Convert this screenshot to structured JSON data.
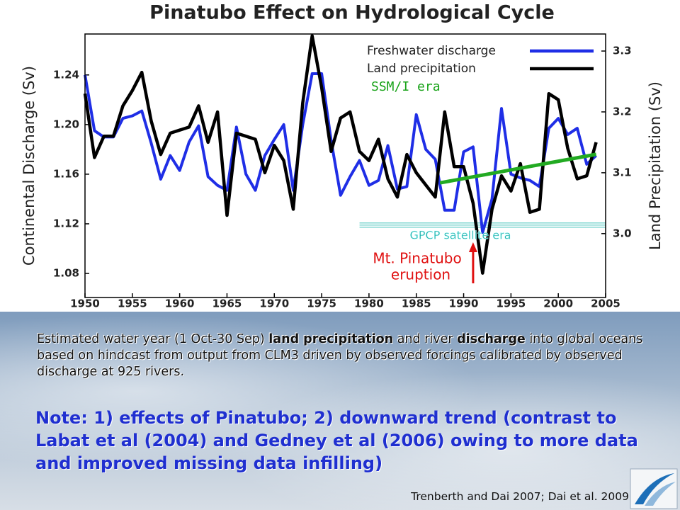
{
  "chart_data": {
    "type": "line",
    "title": "Pinatubo Effect on Hydrological Cycle",
    "ylabel": "Continental Discharge (Sv)",
    "y2label": "Land Precipitation (Sv)",
    "x": [
      1950,
      1951,
      1952,
      1953,
      1954,
      1955,
      1956,
      1957,
      1958,
      1959,
      1960,
      1961,
      1962,
      1963,
      1964,
      1965,
      1966,
      1967,
      1968,
      1969,
      1970,
      1971,
      1972,
      1973,
      1974,
      1975,
      1976,
      1977,
      1978,
      1979,
      1980,
      1981,
      1982,
      1983,
      1984,
      1985,
      1986,
      1987,
      1988,
      1989,
      1990,
      1991,
      1992,
      1993,
      1994,
      1995,
      1996,
      1997,
      1998,
      1999,
      2000,
      2001,
      2002,
      2003,
      2004
    ],
    "series": [
      {
        "name": "Freshwater discharge",
        "color": "#1f2ee6",
        "values": [
          1.24,
          1.195,
          1.19,
          1.19,
          1.205,
          1.207,
          1.211,
          1.185,
          1.156,
          1.175,
          1.163,
          1.186,
          1.199,
          1.158,
          1.151,
          1.147,
          1.198,
          1.16,
          1.147,
          1.175,
          1.188,
          1.2,
          1.147,
          1.2,
          1.241,
          1.241,
          1.187,
          1.143,
          1.158,
          1.171,
          1.151,
          1.155,
          1.183,
          1.148,
          1.15,
          1.208,
          1.18,
          1.172,
          1.131,
          1.131,
          1.178,
          1.182,
          1.113,
          1.14,
          1.213,
          1.16,
          1.157,
          1.155,
          1.15,
          1.197,
          1.205,
          1.192,
          1.197,
          1.168,
          1.175
        ]
      },
      {
        "name": "Land precipitation",
        "color": "#000000",
        "axis": "y2",
        "values": [
          3.23,
          3.125,
          3.16,
          3.16,
          3.21,
          3.235,
          3.265,
          3.185,
          3.13,
          3.165,
          3.17,
          3.175,
          3.21,
          3.15,
          3.2,
          3.03,
          3.165,
          3.16,
          3.155,
          3.1,
          3.145,
          3.12,
          3.04,
          3.215,
          3.325,
          3.24,
          3.135,
          3.19,
          3.2,
          3.135,
          3.12,
          3.155,
          3.09,
          3.06,
          3.13,
          3.1,
          3.08,
          3.06,
          3.2,
          3.11,
          3.11,
          3.05,
          2.935,
          3.04,
          3.095,
          3.07,
          3.115,
          3.035,
          3.04,
          3.23,
          3.22,
          3.14,
          3.09,
          3.095,
          3.15
        ]
      }
    ],
    "trend": {
      "x": [
        1987.5,
        2004
      ],
      "values": [
        1.153,
        1.176
      ],
      "color": "#22aa22"
    },
    "gpcp_line": {
      "x": [
        1979,
        2005
      ],
      "values": [
        1.119,
        1.119
      ],
      "color": "#7fd6d0"
    },
    "eruption_year": 1991,
    "annotations": {
      "ssmi": "SSM/I era",
      "gpcp": "GPCP satellite era",
      "pinatubo": [
        "Mt. Pinatubo",
        "eruption"
      ]
    },
    "xlim": [
      1950,
      2005
    ],
    "xticks": [
      1950,
      1955,
      1960,
      1965,
      1970,
      1975,
      1980,
      1985,
      1990,
      1995,
      2000,
      2005
    ],
    "ylim": [
      1.0606,
      1.273
    ],
    "yticks": [
      1.08,
      1.12,
      1.16,
      {
        "value": 1.2,
        "label": "1.20"
      },
      1.24
    ],
    "y2lim": [
      2.895,
      3.328
    ],
    "y2ticks": [
      {
        "value": 3,
        "label": "3.0"
      },
      3.1,
      3.2,
      3.3
    ],
    "legend": "upper right"
  },
  "caption": [
    "Estimated water year (1 Oct-30 Sep) ",
    "land precipitation",
    " and river ",
    "discharge",
    " into global oceans based on hindcast from output from CLM3 driven by observed forcings calibrated by observed discharge at 925 rivers."
  ],
  "note": "Note: 1) effects of Pinatubo; 2) downward trend (contrast to Labat et al (2004) and Gedney et al (2006) owing to more data and improved missing data infilling)",
  "citation": "Trenberth and Dai 2007; Dai et al. 2009"
}
